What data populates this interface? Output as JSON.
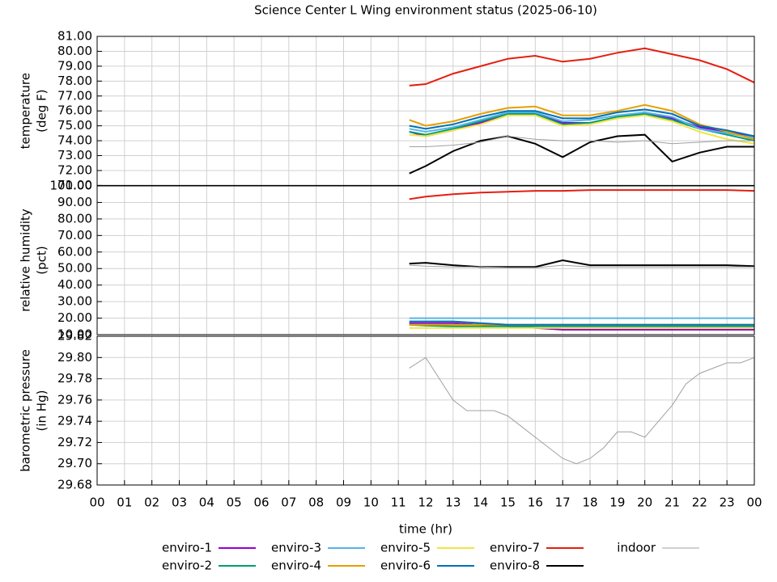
{
  "chart_data": [
    {
      "type": "line",
      "title": "Science Center L Wing environment status (2025-06-10)",
      "ylabel": [
        "temperature",
        "(deg F)"
      ],
      "x": [
        11.4,
        12,
        13,
        14,
        15,
        16,
        17,
        18,
        19,
        20,
        21,
        22,
        23,
        24
      ],
      "xlim": [
        0,
        24
      ],
      "ylim": [
        71,
        81
      ],
      "grid": true,
      "yticks": [
        {
          "value": 71,
          "label": "71.00"
        },
        {
          "value": 72,
          "label": "72.00"
        },
        {
          "value": 73,
          "label": "73.00"
        },
        {
          "value": 74,
          "label": "74.00"
        },
        {
          "value": 75,
          "label": "75.00"
        },
        {
          "value": 76,
          "label": "76.00"
        },
        {
          "value": 77,
          "label": "77.00"
        },
        {
          "value": 78,
          "label": "78.00"
        },
        {
          "value": 79,
          "label": "79.00"
        },
        {
          "value": 80,
          "label": "80.00"
        },
        {
          "value": 81,
          "label": "81.00"
        }
      ],
      "series": [
        {
          "name": "enviro-1",
          "color": "#9400d3",
          "values": [
            74.6,
            74.3,
            74.7,
            75.2,
            75.8,
            75.8,
            75.2,
            75.2,
            75.6,
            75.9,
            75.5,
            74.9,
            74.6,
            74.3
          ]
        },
        {
          "name": "enviro-2",
          "color": "#009e73",
          "values": [
            74.6,
            74.4,
            74.8,
            75.3,
            75.8,
            75.8,
            75.1,
            75.2,
            75.6,
            75.8,
            75.4,
            74.8,
            74.4,
            74.0
          ]
        },
        {
          "name": "enviro-3",
          "color": "#56b4e9",
          "values": [
            74.8,
            74.6,
            74.9,
            75.4,
            75.9,
            75.9,
            75.3,
            75.4,
            75.7,
            75.9,
            75.6,
            74.8,
            74.5,
            74.2
          ]
        },
        {
          "name": "enviro-4",
          "color": "#e69f00",
          "values": [
            75.4,
            75.0,
            75.3,
            75.8,
            76.2,
            76.3,
            75.7,
            75.7,
            76.0,
            76.4,
            76.0,
            75.1,
            74.6,
            74.1
          ]
        },
        {
          "name": "enviro-5",
          "color": "#f0e442",
          "values": [
            74.4,
            74.3,
            74.7,
            75.1,
            75.7,
            75.7,
            75.0,
            75.1,
            75.5,
            75.7,
            75.3,
            74.6,
            74.1,
            73.8
          ]
        },
        {
          "name": "enviro-6",
          "color": "#0072b2",
          "values": [
            75.0,
            74.8,
            75.1,
            75.6,
            76.0,
            76.0,
            75.5,
            75.5,
            75.9,
            76.1,
            75.8,
            75.0,
            74.7,
            74.3
          ]
        },
        {
          "name": "enviro-7",
          "color": "#e51e10",
          "values": [
            77.7,
            77.8,
            78.5,
            79.0,
            79.5,
            79.7,
            79.3,
            79.5,
            79.9,
            80.2,
            79.8,
            79.4,
            78.8,
            77.9
          ]
        },
        {
          "name": "enviro-8",
          "color": "#000000",
          "values": [
            71.8,
            72.3,
            73.3,
            74.0,
            74.3,
            73.8,
            72.9,
            73.9,
            74.3,
            74.4,
            72.6,
            73.2,
            73.6,
            73.6
          ]
        },
        {
          "name": "indoor",
          "color": "#a0a0a0",
          "values": [
            73.6,
            73.6,
            73.7,
            73.9,
            74.3,
            74.1,
            74.0,
            74.0,
            73.9,
            74.0,
            73.8,
            73.9,
            74.0,
            74.0
          ]
        }
      ]
    },
    {
      "type": "line",
      "ylabel": [
        "relative humidity",
        "(pct)"
      ],
      "x": [
        11.4,
        12,
        13,
        14,
        15,
        16,
        17,
        18,
        19,
        20,
        21,
        22,
        23,
        24
      ],
      "xlim": [
        0,
        24
      ],
      "ylim": [
        10,
        100
      ],
      "grid": true,
      "yticks": [
        {
          "value": 10,
          "label": "10.00"
        },
        {
          "value": 20,
          "label": "20.00"
        },
        {
          "value": 30,
          "label": "30.00"
        },
        {
          "value": 40,
          "label": "40.00"
        },
        {
          "value": 50,
          "label": "50.00"
        },
        {
          "value": 60,
          "label": "60.00"
        },
        {
          "value": 70,
          "label": "70.00"
        },
        {
          "value": 80,
          "label": "80.00"
        },
        {
          "value": 90,
          "label": "90.00"
        },
        {
          "value": 100,
          "label": "100.00"
        }
      ],
      "series": [
        {
          "name": "enviro-1",
          "color": "#9400d3",
          "values": [
            17,
            17,
            17,
            16,
            15,
            14,
            13,
            13,
            13,
            13,
            13,
            13,
            13,
            13
          ]
        },
        {
          "name": "enviro-2",
          "color": "#009e73",
          "values": [
            16,
            15.5,
            15,
            15,
            15,
            15,
            15,
            15,
            15,
            15,
            15,
            15,
            15,
            15
          ]
        },
        {
          "name": "enviro-3",
          "color": "#56b4e9",
          "values": [
            20,
            20,
            20,
            20,
            20,
            20,
            20,
            20,
            20,
            20,
            20,
            20,
            20,
            20
          ]
        },
        {
          "name": "enviro-4",
          "color": "#e69f00",
          "values": [
            16,
            16,
            16,
            16,
            16,
            16,
            16,
            16,
            16,
            16,
            16,
            16,
            16,
            16
          ]
        },
        {
          "name": "enviro-5",
          "color": "#f0e442",
          "values": [
            14,
            14,
            14,
            14,
            14,
            14,
            14,
            14,
            14,
            14,
            14,
            14,
            14,
            14
          ]
        },
        {
          "name": "enviro-6",
          "color": "#0072b2",
          "values": [
            18,
            18,
            18,
            17,
            16,
            16,
            16,
            16,
            16,
            16,
            16,
            16,
            16,
            16
          ]
        },
        {
          "name": "enviro-7",
          "color": "#e51e10",
          "values": [
            92,
            93.5,
            95,
            96,
            96.5,
            97,
            97,
            97.5,
            97.5,
            97.5,
            97.5,
            97.5,
            97.5,
            97
          ]
        },
        {
          "name": "enviro-8",
          "color": "#000000",
          "values": [
            53,
            53.5,
            52,
            51,
            51,
            51,
            55,
            52,
            52,
            52,
            52,
            52,
            52,
            51.5
          ]
        },
        {
          "name": "indoor",
          "color": "#a0a0a0",
          "values": [
            52,
            51.5,
            51,
            51,
            50.5,
            50.5,
            52,
            51,
            51,
            51,
            51,
            51,
            51,
            51
          ]
        }
      ]
    },
    {
      "type": "line",
      "ylabel": [
        "barometric pressure",
        "(in Hg)"
      ],
      "xlabel": "time (hr)",
      "x": [
        11.4,
        12,
        12.5,
        13,
        13.5,
        14,
        14.5,
        15,
        15.5,
        16,
        16.5,
        17,
        17.5,
        18,
        18.5,
        19,
        19.5,
        20,
        20.5,
        21,
        21.5,
        22,
        22.5,
        23,
        23.5,
        24
      ],
      "xlim": [
        0,
        24
      ],
      "ylim": [
        29.68,
        29.82
      ],
      "grid": true,
      "yticks": [
        {
          "value": 29.68,
          "label": "29.68"
        },
        {
          "value": 29.7,
          "label": "29.70"
        },
        {
          "value": 29.72,
          "label": "29.72"
        },
        {
          "value": 29.74,
          "label": "29.74"
        },
        {
          "value": 29.76,
          "label": "29.76"
        },
        {
          "value": 29.78,
          "label": "29.78"
        },
        {
          "value": 29.8,
          "label": "29.80"
        },
        {
          "value": 29.82,
          "label": "29.82"
        }
      ],
      "xticks": [
        {
          "value": 0,
          "label": "00"
        },
        {
          "value": 1,
          "label": "01"
        },
        {
          "value": 2,
          "label": "02"
        },
        {
          "value": 3,
          "label": "03"
        },
        {
          "value": 4,
          "label": "04"
        },
        {
          "value": 5,
          "label": "05"
        },
        {
          "value": 6,
          "label": "06"
        },
        {
          "value": 7,
          "label": "07"
        },
        {
          "value": 8,
          "label": "08"
        },
        {
          "value": 9,
          "label": "09"
        },
        {
          "value": 10,
          "label": "10"
        },
        {
          "value": 11,
          "label": "11"
        },
        {
          "value": 12,
          "label": "12"
        },
        {
          "value": 13,
          "label": "13"
        },
        {
          "value": 14,
          "label": "14"
        },
        {
          "value": 15,
          "label": "15"
        },
        {
          "value": 16,
          "label": "16"
        },
        {
          "value": 17,
          "label": "17"
        },
        {
          "value": 18,
          "label": "18"
        },
        {
          "value": 19,
          "label": "19"
        },
        {
          "value": 20,
          "label": "20"
        },
        {
          "value": 21,
          "label": "21"
        },
        {
          "value": 22,
          "label": "22"
        },
        {
          "value": 23,
          "label": "23"
        },
        {
          "value": 24,
          "label": "00"
        }
      ],
      "series": [
        {
          "name": "indoor",
          "color": "#a0a0a0",
          "values": [
            29.79,
            29.8,
            29.78,
            29.76,
            29.75,
            29.75,
            29.75,
            29.745,
            29.735,
            29.725,
            29.715,
            29.705,
            29.7,
            29.705,
            29.715,
            29.73,
            29.73,
            29.725,
            29.74,
            29.755,
            29.775,
            29.785,
            29.79,
            29.795,
            29.795,
            29.8
          ]
        }
      ]
    }
  ]
}
